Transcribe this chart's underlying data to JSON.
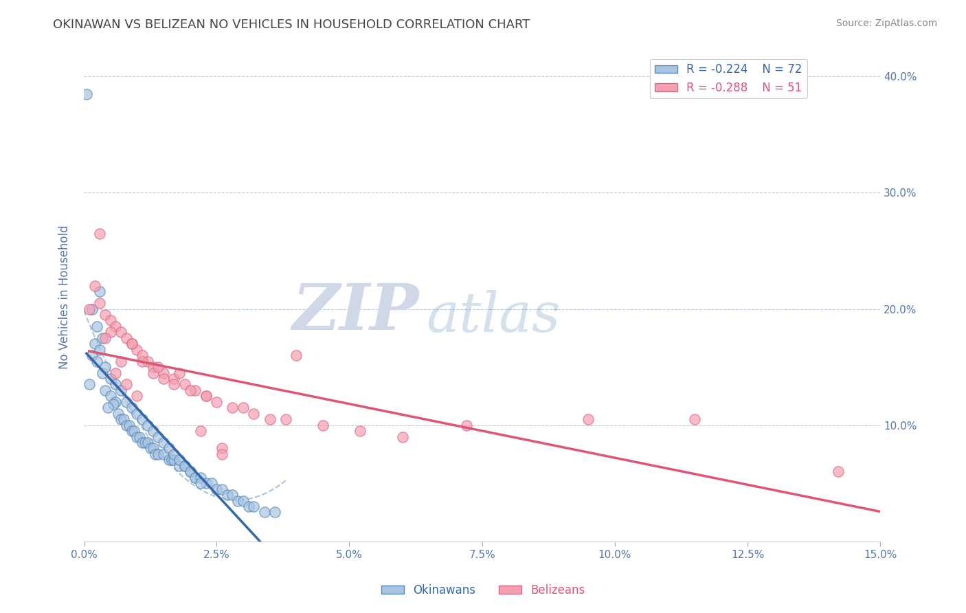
{
  "title": "OKINAWAN VS BELIZEAN NO VEHICLES IN HOUSEHOLD CORRELATION CHART",
  "source": "Source: ZipAtlas.com",
  "ylabel": "No Vehicles in Household",
  "xlim": [
    0.0,
    15.0
  ],
  "ylim": [
    0.0,
    42.0
  ],
  "yticks": [
    10.0,
    20.0,
    30.0,
    40.0
  ],
  "xticks": [
    0.0,
    2.5,
    5.0,
    7.5,
    10.0,
    12.5,
    15.0
  ],
  "okinawan_R": -0.224,
  "okinawan_N": 72,
  "belizean_R": -0.288,
  "belizean_N": 51,
  "okinawan_color": "#a8c4e0",
  "belizean_color": "#f4a0b0",
  "okinawan_edge": "#5588bb",
  "belizean_edge": "#dd6688",
  "trend_okinawan_color": "#3366aa",
  "trend_belizean_color": "#dd5577",
  "watermark_zip_color": "#d0d8e8",
  "watermark_atlas_color": "#5588bb",
  "okinawan_x": [
    0.05,
    0.3,
    0.15,
    0.25,
    0.35,
    0.1,
    0.4,
    0.5,
    0.6,
    0.55,
    0.45,
    0.65,
    0.7,
    0.75,
    0.8,
    0.85,
    0.9,
    0.95,
    1.0,
    1.05,
    1.1,
    1.15,
    1.2,
    1.25,
    1.3,
    1.35,
    1.4,
    1.5,
    1.6,
    1.65,
    1.7,
    1.8,
    1.9,
    2.0,
    2.1,
    0.2,
    0.3,
    0.4,
    0.5,
    0.6,
    0.7,
    0.8,
    0.9,
    1.0,
    1.1,
    1.2,
    1.3,
    1.4,
    1.5,
    1.6,
    1.7,
    1.8,
    1.9,
    2.0,
    2.1,
    2.2,
    2.3,
    2.4,
    2.5,
    2.6,
    2.7,
    2.8,
    2.9,
    3.0,
    3.1,
    3.2,
    3.4,
    3.6,
    0.15,
    0.25,
    0.35,
    2.2
  ],
  "okinawan_y": [
    38.5,
    21.5,
    16.0,
    15.5,
    14.5,
    13.5,
    13.0,
    12.5,
    12.0,
    11.8,
    11.5,
    11.0,
    10.5,
    10.5,
    10.0,
    10.0,
    9.5,
    9.5,
    9.0,
    9.0,
    8.5,
    8.5,
    8.5,
    8.0,
    8.0,
    7.5,
    7.5,
    7.5,
    7.0,
    7.0,
    7.0,
    6.5,
    6.5,
    6.0,
    5.5,
    17.0,
    16.5,
    15.0,
    14.0,
    13.5,
    13.0,
    12.0,
    11.5,
    11.0,
    10.5,
    10.0,
    9.5,
    9.0,
    8.5,
    8.0,
    7.5,
    7.0,
    6.5,
    6.0,
    5.5,
    5.5,
    5.0,
    5.0,
    4.5,
    4.5,
    4.0,
    4.0,
    3.5,
    3.5,
    3.0,
    3.0,
    2.5,
    2.5,
    20.0,
    18.5,
    17.5,
    5.0
  ],
  "belizean_x": [
    0.1,
    0.2,
    0.3,
    0.4,
    0.5,
    0.6,
    0.7,
    0.8,
    0.9,
    1.0,
    1.1,
    1.2,
    1.3,
    1.5,
    1.7,
    1.9,
    2.1,
    2.3,
    2.5,
    2.8,
    3.2,
    3.8,
    4.5,
    5.2,
    6.0,
    7.2,
    9.5,
    11.5,
    14.2,
    0.3,
    0.5,
    0.7,
    0.9,
    1.1,
    1.3,
    1.5,
    1.7,
    2.0,
    2.3,
    2.6,
    3.0,
    3.5,
    4.0,
    0.4,
    0.6,
    0.8,
    1.0,
    1.4,
    1.8,
    2.2,
    2.6
  ],
  "belizean_y": [
    20.0,
    22.0,
    20.5,
    19.5,
    19.0,
    18.5,
    18.0,
    17.5,
    17.0,
    16.5,
    16.0,
    15.5,
    15.0,
    14.5,
    14.0,
    13.5,
    13.0,
    12.5,
    12.0,
    11.5,
    11.0,
    10.5,
    10.0,
    9.5,
    9.0,
    10.0,
    10.5,
    10.5,
    6.0,
    26.5,
    18.0,
    15.5,
    17.0,
    15.5,
    14.5,
    14.0,
    13.5,
    13.0,
    12.5,
    8.0,
    11.5,
    10.5,
    16.0,
    17.5,
    14.5,
    13.5,
    12.5,
    15.0,
    14.5,
    9.5,
    7.5
  ]
}
